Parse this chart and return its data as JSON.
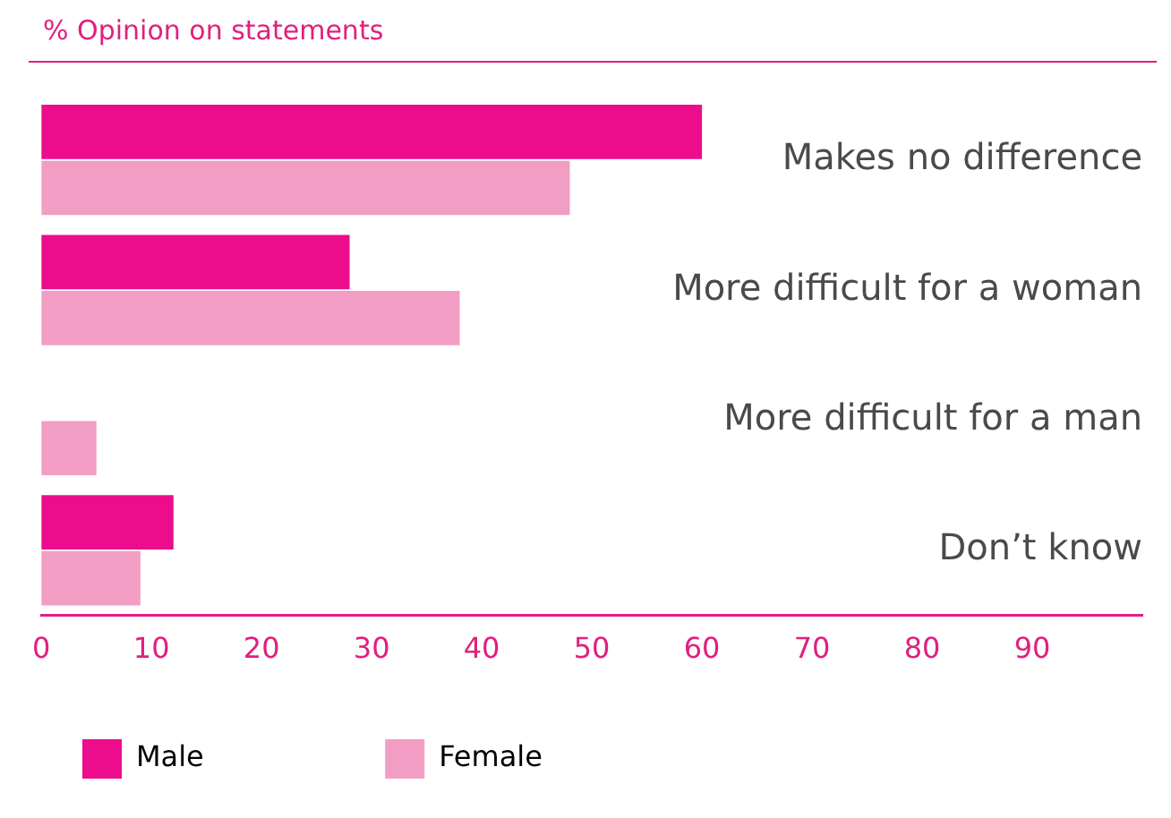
{
  "chart_data": {
    "type": "bar",
    "orientation": "horizontal",
    "title": "% Opinion on statements",
    "categories": [
      "Makes no difference",
      "More difficult for a woman",
      "More difficult for a man",
      "Don’t know"
    ],
    "series": [
      {
        "name": "Male",
        "color": "#ec0c8c",
        "values": [
          60,
          28,
          0,
          12
        ]
      },
      {
        "name": "Female",
        "color": "#f29ec4",
        "values": [
          48,
          38,
          5,
          9
        ]
      }
    ],
    "xlim": [
      0,
      100
    ],
    "xticks": [
      0,
      10,
      20,
      30,
      40,
      50,
      60,
      70,
      80,
      90
    ],
    "grid": false,
    "legend": "bottom left"
  }
}
